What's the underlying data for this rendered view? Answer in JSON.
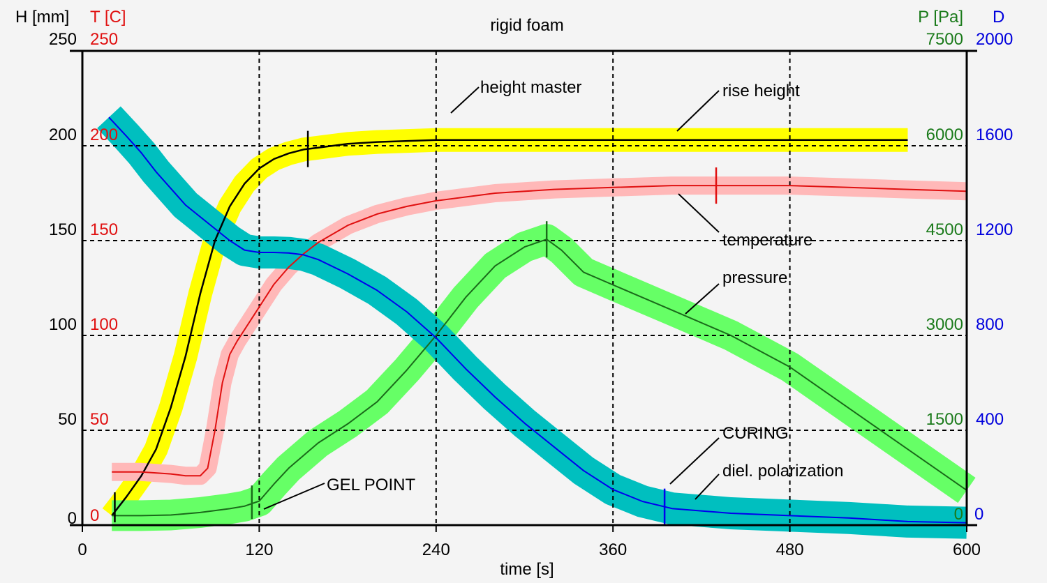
{
  "chart_data": {
    "type": "line",
    "title": "rigid foam",
    "xlabel": "time [s]",
    "xlim": [
      0,
      600
    ],
    "x_ticks": [
      "0",
      "120",
      "240",
      "360",
      "480",
      "600"
    ],
    "axes": {
      "H": {
        "label": "H [mm]",
        "range": [
          0,
          250
        ],
        "ticks": [
          "0",
          "50",
          "100",
          "150",
          "200",
          "250"
        ],
        "color": "#000000"
      },
      "T": {
        "label": "T [C]",
        "range": [
          0,
          250
        ],
        "ticks": [
          "0",
          "50",
          "100",
          "150",
          "200",
          "250"
        ],
        "color": "#e01010"
      },
      "P": {
        "label": "P [Pa]",
        "range": [
          0,
          7500
        ],
        "ticks": [
          "0",
          "1500",
          "3000",
          "4500",
          "6000",
          "7500"
        ],
        "color": "#1a7a1a"
      },
      "D": {
        "label": "D",
        "range": [
          0,
          2000
        ],
        "ticks": [
          "0",
          "400",
          "800",
          "1200",
          "1600",
          "2000"
        ],
        "color": "#0000dd"
      }
    },
    "grid": true,
    "series": [
      {
        "name": "rise height",
        "axis": "H",
        "color": "#000000",
        "band_color": "#ffff00",
        "x": [
          20,
          30,
          40,
          50,
          60,
          70,
          80,
          90,
          100,
          110,
          120,
          130,
          140,
          150,
          160,
          180,
          200,
          240,
          280,
          320,
          360,
          400,
          440,
          480,
          520,
          560
        ],
        "y": [
          5,
          15,
          26,
          40,
          62,
          89,
          122,
          150,
          168,
          180,
          188,
          193,
          196,
          198,
          199,
          201,
          202,
          203,
          203,
          203,
          203,
          203,
          203,
          203,
          203,
          203
        ],
        "marker_x": 153
      },
      {
        "name": "temperature",
        "axis": "T",
        "color": "#e01010",
        "band_color": "#ffb8b8",
        "x": [
          20,
          40,
          60,
          70,
          80,
          85,
          90,
          95,
          100,
          105,
          110,
          120,
          130,
          140,
          150,
          160,
          180,
          200,
          220,
          240,
          280,
          320,
          360,
          400,
          440,
          480,
          520,
          560,
          600
        ],
        "y": [
          28,
          28,
          27,
          26,
          26,
          30,
          50,
          75,
          90,
          97,
          103,
          115,
          127,
          136,
          143,
          149,
          158,
          164,
          168,
          171,
          175,
          177,
          178,
          179,
          179,
          179,
          178,
          177,
          176
        ],
        "marker_x": 430
      },
      {
        "name": "pressure",
        "axis": "P",
        "color": "#1a6a1a",
        "band_color": "#66ff66",
        "x": [
          20,
          40,
          60,
          80,
          100,
          110,
          120,
          130,
          140,
          160,
          180,
          200,
          220,
          240,
          260,
          280,
          300,
          315,
          325,
          340,
          360,
          380,
          400,
          440,
          480,
          520,
          560,
          600
        ],
        "y": [
          150,
          150,
          160,
          200,
          260,
          300,
          380,
          650,
          900,
          1300,
          1600,
          1950,
          2450,
          3000,
          3600,
          4100,
          4400,
          4520,
          4350,
          4000,
          3800,
          3600,
          3400,
          3000,
          2500,
          1850,
          1200,
          550
        ],
        "marker_x": 315
      },
      {
        "name": "diel. polarization",
        "axis": "D",
        "color": "#0000ee",
        "band_color": "#00bfbf",
        "x": [
          18,
          30,
          40,
          50,
          60,
          70,
          80,
          90,
          100,
          110,
          120,
          130,
          140,
          150,
          160,
          180,
          200,
          220,
          240,
          260,
          280,
          300,
          320,
          340,
          360,
          380,
          400,
          440,
          480,
          520,
          560,
          600
        ],
        "y": [
          1720,
          1640,
          1570,
          1490,
          1420,
          1350,
          1300,
          1250,
          1200,
          1160,
          1150,
          1150,
          1148,
          1140,
          1120,
          1060,
          990,
          900,
          790,
          660,
          540,
          430,
          330,
          230,
          150,
          100,
          70,
          50,
          40,
          30,
          15,
          10
        ],
        "marker_x": 395
      },
      {
        "name": "height master",
        "axis": "H",
        "band_color": "#ffff00",
        "color": "#ffff00",
        "x": [
          20,
          600
        ],
        "y": [
          0,
          0
        ]
      }
    ],
    "annotations": {
      "gel_point": "GEL POINT",
      "curing": "CURING",
      "gel_point_x": 115,
      "start_x": 22
    }
  }
}
